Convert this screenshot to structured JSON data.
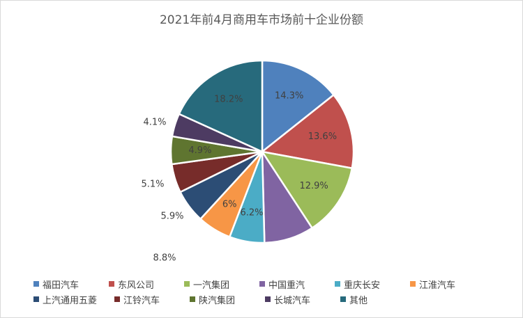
{
  "chart_data": {
    "type": "pie",
    "title": "2021年前4月商用车市场前十企业份额",
    "slices": [
      {
        "label": "福田汽车",
        "value": 14.3,
        "display": "14.3%",
        "color": "#4f81bd"
      },
      {
        "label": "东风公司",
        "value": 13.6,
        "display": "13.6%",
        "color": "#c0504d"
      },
      {
        "label": "一汽集团",
        "value": 12.9,
        "display": "12.9%",
        "color": "#9bbb59"
      },
      {
        "label": "中国重汽",
        "value": 8.8,
        "display": "8.8%",
        "color": "#8064a2"
      },
      {
        "label": "重庆长安",
        "value": 6.2,
        "display": "6.2%",
        "color": "#4bacc6"
      },
      {
        "label": "江淮汽车",
        "value": 6.0,
        "display": "6%",
        "color": "#f79646"
      },
      {
        "label": "上汽通用五菱",
        "value": 5.9,
        "display": "5.9%",
        "color": "#2c4d75"
      },
      {
        "label": "江铃汽车",
        "value": 5.1,
        "display": "5.1%",
        "color": "#772c2a"
      },
      {
        "label": "陕汽集团",
        "value": 4.9,
        "display": "4.9%",
        "color": "#5f7530"
      },
      {
        "label": "长城汽车",
        "value": 4.1,
        "display": "4.1%",
        "color": "#4d3b62"
      },
      {
        "label": "其他",
        "value": 18.2,
        "display": "18.2%",
        "color": "#276a7c"
      }
    ],
    "legend_position": "bottom"
  }
}
